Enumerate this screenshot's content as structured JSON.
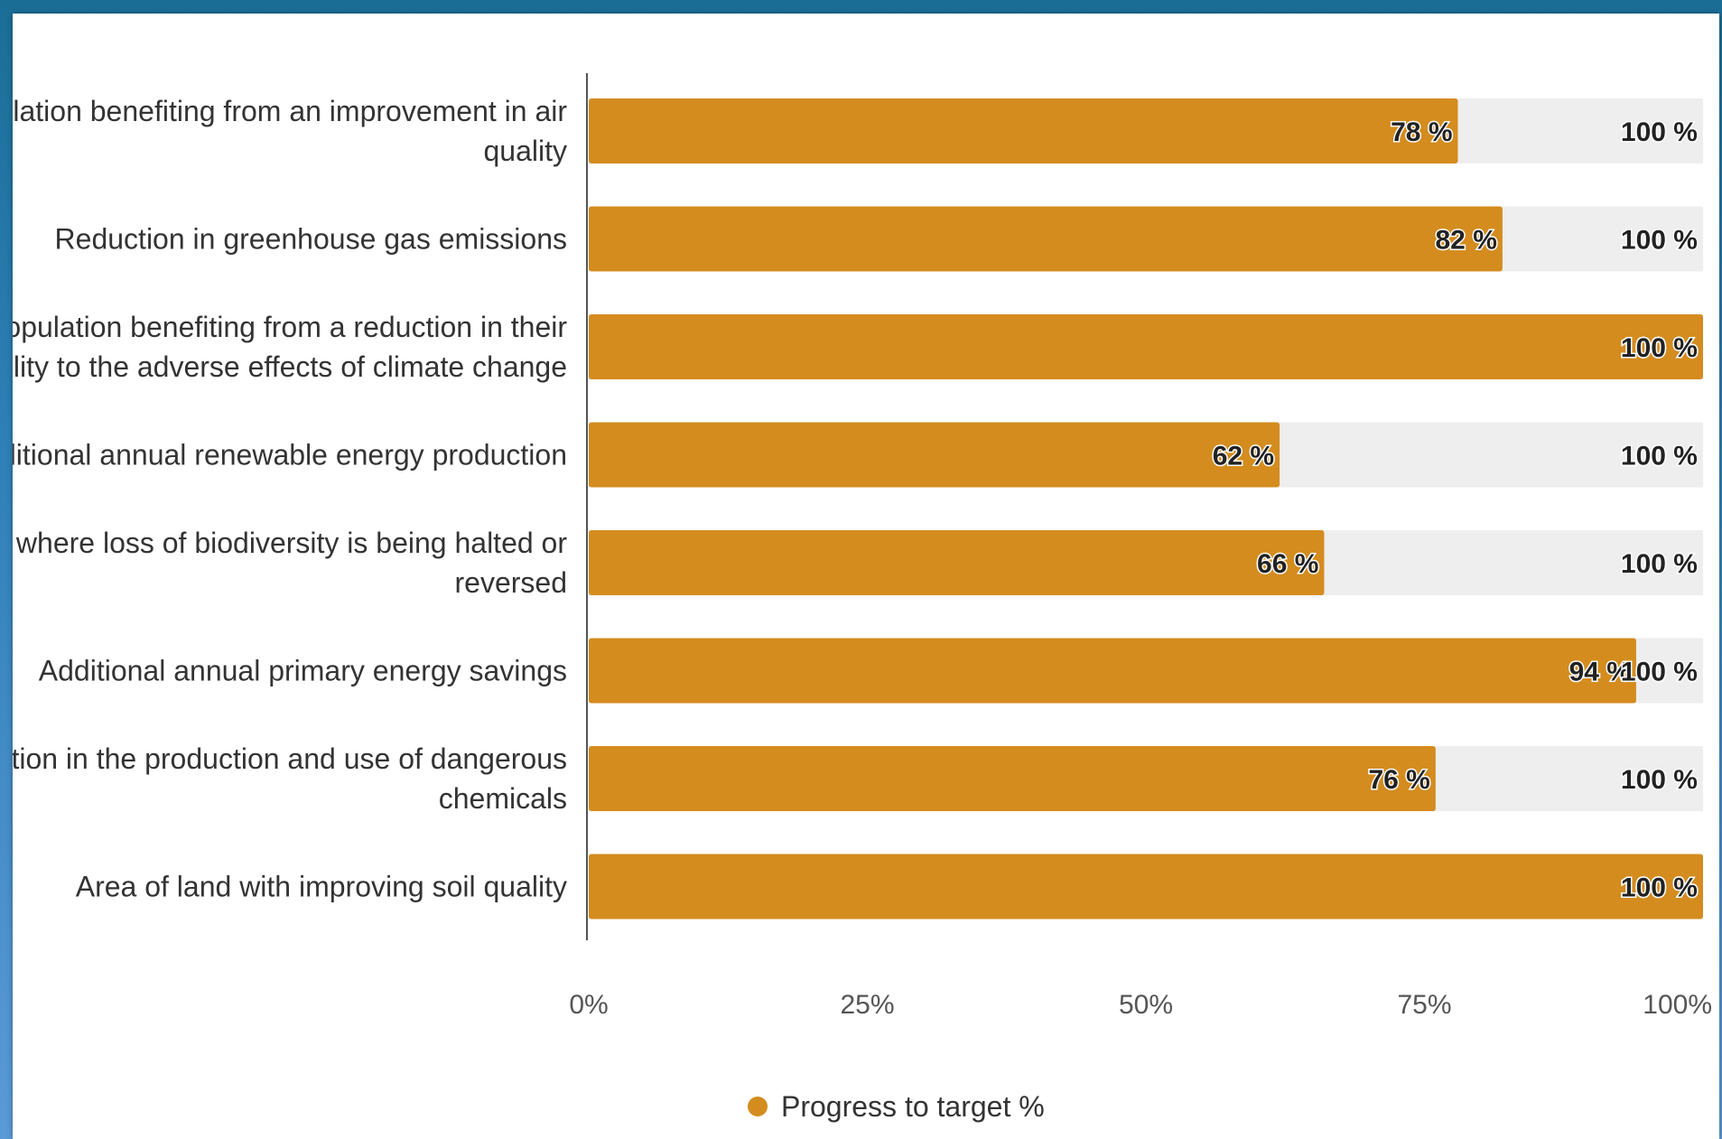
{
  "colors": {
    "bar": "#d48c1f",
    "track": "#eeeeee",
    "text": "#333333",
    "axis": "#555555"
  },
  "legend": {
    "label": "Progress to target %"
  },
  "chart_data": {
    "type": "bar",
    "orientation": "horizontal",
    "categories": [
      [
        "Population benefiting from an improvement in air",
        "quality"
      ],
      [
        "Reduction in greenhouse gas emissions"
      ],
      [
        "Population benefiting from a reduction in their",
        "vulnerability to the adverse effects of climate change"
      ],
      [
        "Additional annual renewable energy production"
      ],
      [
        "Habitats where loss of biodiversity is being halted or",
        "reversed"
      ],
      [
        "Additional annual primary energy savings"
      ],
      [
        "Reduction in the production and use of dangerous",
        "chemicals"
      ],
      [
        "Area of land with improving soil quality"
      ]
    ],
    "series": [
      {
        "name": "Progress to target %",
        "values": [
          78,
          82,
          100,
          62,
          66,
          94,
          76,
          100
        ],
        "labels": [
          "78 %",
          "82 %",
          "100 %",
          "62 %",
          "66 %",
          "94 %",
          "76 %",
          "100 %"
        ]
      }
    ],
    "target": {
      "values": [
        100,
        100,
        100,
        100,
        100,
        100,
        100,
        100
      ],
      "labels": [
        "100 %",
        "100 %",
        "100 %",
        "100 %",
        "100 %",
        "100 %",
        "100 %",
        "100 %"
      ]
    },
    "xticks": [
      "0%",
      "25%",
      "50%",
      "75%",
      "100%"
    ],
    "xlim": [
      0,
      100
    ],
    "grid": false,
    "legend_position": "bottom-center"
  }
}
